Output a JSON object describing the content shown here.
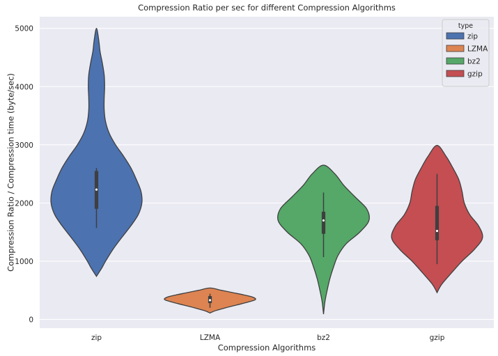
{
  "chart_data": {
    "type": "violin",
    "title": "Compression Ratio per sec for different Compression Algorithms",
    "xlabel": "Compression Algorithms",
    "ylabel": "Compression Ratio / Compression time (byte/sec)",
    "ylim": [
      -150,
      5200
    ],
    "yticks": [
      0,
      1000,
      2000,
      3000,
      4000,
      5000
    ],
    "grid": true,
    "legend": {
      "title": "type",
      "position": "top-right"
    },
    "categories": [
      "zip",
      "LZMA",
      "bz2",
      "gzip"
    ],
    "series": [
      {
        "name": "zip",
        "color": "#4c72b0",
        "min": 740,
        "max": 5000,
        "q1": 1900,
        "median": 2230,
        "q3": 2550,
        "whisker_low": 1570,
        "whisker_high": 2600,
        "density": [
          [
            740,
            0.0
          ],
          [
            800,
            0.05
          ],
          [
            900,
            0.13
          ],
          [
            1000,
            0.2
          ],
          [
            1200,
            0.36
          ],
          [
            1400,
            0.55
          ],
          [
            1600,
            0.75
          ],
          [
            1800,
            0.92
          ],
          [
            2000,
            1.0
          ],
          [
            2200,
            0.98
          ],
          [
            2400,
            0.88
          ],
          [
            2600,
            0.76
          ],
          [
            2800,
            0.6
          ],
          [
            3000,
            0.42
          ],
          [
            3200,
            0.28
          ],
          [
            3400,
            0.2
          ],
          [
            3600,
            0.17
          ],
          [
            3800,
            0.17
          ],
          [
            4000,
            0.18
          ],
          [
            4200,
            0.17
          ],
          [
            4400,
            0.13
          ],
          [
            4600,
            0.08
          ],
          [
            4800,
            0.05
          ],
          [
            5000,
            0.0
          ]
        ]
      },
      {
        "name": "LZMA",
        "color": "#dd8452",
        "min": 110,
        "max": 540,
        "q1": 280,
        "median": 330,
        "q3": 400,
        "whisker_low": 200,
        "whisker_high": 440,
        "density": [
          [
            110,
            0.0
          ],
          [
            150,
            0.12
          ],
          [
            200,
            0.35
          ],
          [
            250,
            0.6
          ],
          [
            300,
            0.85
          ],
          [
            340,
            1.0
          ],
          [
            380,
            0.95
          ],
          [
            420,
            0.75
          ],
          [
            460,
            0.5
          ],
          [
            500,
            0.25
          ],
          [
            540,
            0.0
          ]
        ]
      },
      {
        "name": "bz2",
        "color": "#55a868",
        "min": 90,
        "max": 2650,
        "q1": 1470,
        "median": 1700,
        "q3": 1850,
        "whisker_low": 1070,
        "whisker_high": 2180,
        "density": [
          [
            90,
            0.0
          ],
          [
            300,
            0.03
          ],
          [
            500,
            0.08
          ],
          [
            700,
            0.14
          ],
          [
            900,
            0.22
          ],
          [
            1100,
            0.32
          ],
          [
            1300,
            0.5
          ],
          [
            1500,
            0.8
          ],
          [
            1700,
            1.0
          ],
          [
            1900,
            0.95
          ],
          [
            2100,
            0.7
          ],
          [
            2300,
            0.45
          ],
          [
            2500,
            0.25
          ],
          [
            2650,
            0.0
          ]
        ]
      },
      {
        "name": "gzip",
        "color": "#c44e52",
        "min": 460,
        "max": 2990,
        "q1": 1360,
        "median": 1520,
        "q3": 1950,
        "whisker_low": 950,
        "whisker_high": 2500,
        "density": [
          [
            460,
            0.0
          ],
          [
            600,
            0.1
          ],
          [
            800,
            0.32
          ],
          [
            1000,
            0.55
          ],
          [
            1200,
            0.82
          ],
          [
            1400,
            1.0
          ],
          [
            1600,
            0.92
          ],
          [
            1800,
            0.72
          ],
          [
            2000,
            0.6
          ],
          [
            2200,
            0.55
          ],
          [
            2400,
            0.48
          ],
          [
            2600,
            0.35
          ],
          [
            2800,
            0.2
          ],
          [
            2990,
            0.0
          ]
        ]
      }
    ]
  }
}
